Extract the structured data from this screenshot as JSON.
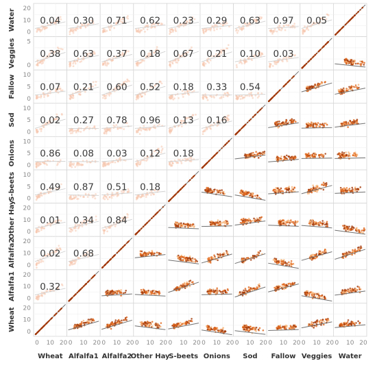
{
  "chart_data": {
    "type": "scatter",
    "variables": [
      "Wheat",
      "Alfalfa1",
      "Alfalfa2",
      "Other Hay",
      "S-beets",
      "Onions",
      "Sod",
      "Fallow",
      "Veggies",
      "Water"
    ],
    "row_labels_top_to_bottom": [
      "Water",
      "Veggies",
      "Fallow",
      "Sod",
      "Onions",
      "S-beets",
      "Other Hay",
      "Alfalfa2",
      "Alfalfa1",
      "Wheat"
    ],
    "x_ticks": [
      "0",
      "10",
      "20"
    ],
    "upper_triangle_correlations": {
      "Water": {
        "Wheat": "0.04",
        "Alfalfa1": "0.30",
        "Alfalfa2": "0.71",
        "Other Hay": "0.62",
        "S-beets": "0.23",
        "Onions": "0.29",
        "Sod": "0.63",
        "Fallow": "0.97",
        "Veggies": "0.05"
      },
      "Veggies": {
        "Wheat": "0.38",
        "Alfalfa1": "0.63",
        "Alfalfa2": "0.37",
        "Other Hay": "0.18",
        "S-beets": "0.67",
        "Onions": "0.21",
        "Sod": "0.10",
        "Fallow": "0.03"
      },
      "Fallow": {
        "Wheat": "0.07",
        "Alfalfa1": "0.21",
        "Alfalfa2": "0.60",
        "Other Hay": "0.52",
        "S-beets": "0.18",
        "Onions": "0.33",
        "Sod": "0.54"
      },
      "Sod": {
        "Wheat": "0.02",
        "Alfalfa1": "0.27",
        "Alfalfa2": "0.78",
        "Other Hay": "0.96",
        "S-beets": "0.13",
        "Onions": "0.16"
      },
      "Onions": {
        "Wheat": "0.86",
        "Alfalfa1": "0.08",
        "Alfalfa2": "0.03",
        "Other Hay": "0.12",
        "S-beets": "0.18"
      },
      "S-beets": {
        "Wheat": "0.49",
        "Alfalfa1": "0.87",
        "Alfalfa2": "0.51",
        "Other Hay": "0.18"
      },
      "Other Hay": {
        "Wheat": "0.01",
        "Alfalfa1": "0.34",
        "Alfalfa2": "0.84"
      },
      "Alfalfa2": {
        "Wheat": "0.02",
        "Alfalfa1": "0.68"
      },
      "Alfalfa1": {
        "Wheat": "0.32"
      }
    },
    "y_ticks_by_row": {
      "Water": [
        "20",
        "10",
        "0"
      ],
      "Veggies": [
        "5",
        "0"
      ],
      "Fallow": [
        "10",
        "5",
        "0"
      ],
      "Sod": [
        "10",
        "5",
        "0"
      ],
      "Onions": [
        "10",
        "5",
        "0"
      ],
      "S-beets": [
        "10",
        "5",
        "0"
      ],
      "Other Hay": [
        "20",
        "10",
        "0"
      ],
      "Alfalfa2": [
        "20",
        "10",
        "0"
      ],
      "Alfalfa1": [
        "20",
        "10",
        "0"
      ],
      "Wheat": [
        "20",
        "10",
        "0"
      ]
    },
    "grid": true,
    "colors": {
      "point_dark": "#a33a0a",
      "point_mid": "#e0661c",
      "point_light": "#f7b57a",
      "faded_point": "#f6c7ae",
      "trend_line": "#707070",
      "faded_line": "#cfcfcf",
      "cell_border": "#d6d6d6"
    }
  }
}
